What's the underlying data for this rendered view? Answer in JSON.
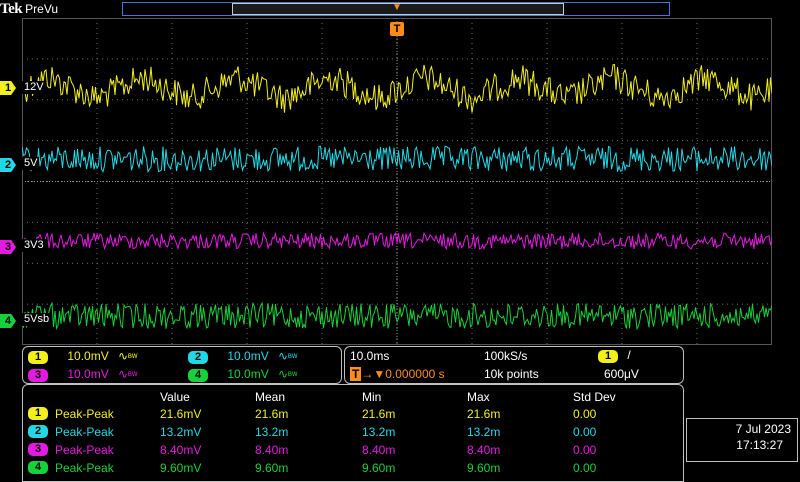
{
  "brand": {
    "logo": "Tek",
    "mode": "PreVu"
  },
  "trigger": {
    "marker": "T",
    "position_marker": "T"
  },
  "colors": {
    "ch1": "#f2ef1c",
    "ch2": "#22d8e6",
    "ch3": "#e31be0",
    "ch4": "#17d13a",
    "grid": "#6e6e6e",
    "trigger": "#ff8c1a",
    "topbar": "#3a7ad8"
  },
  "channels": [
    {
      "num": "1",
      "label": "12V"
    },
    {
      "num": "2",
      "label": "5V"
    },
    {
      "num": "3",
      "label": "3V3"
    },
    {
      "num": "4",
      "label": "5Vsb"
    }
  ],
  "vertical": [
    {
      "num": "1",
      "scale": "10.0mV",
      "bw": "ᴮᵂ"
    },
    {
      "num": "2",
      "scale": "10.0mV",
      "bw": "ᴮᵂ"
    },
    {
      "num": "3",
      "scale": "10.0mV",
      "bw": "ᴮᵂ"
    },
    {
      "num": "4",
      "scale": "10.0mV",
      "bw": "ᴮᵂ"
    }
  ],
  "horizontal": {
    "timebase": "10.0ms",
    "sample_rate": "100kS/s",
    "trigger_position": "0.000000 s",
    "record_length": "10k points",
    "trigger_source": "1",
    "trigger_slope": "/",
    "trigger_level": "600μV"
  },
  "measurements": {
    "headers": [
      "Value",
      "Mean",
      "Min",
      "Max",
      "Std Dev"
    ],
    "rows": [
      {
        "num": "1",
        "type": "Peak-Peak",
        "value": "21.6mV",
        "mean": "21.6m",
        "min": "21.6m",
        "max": "21.6m",
        "std": "0.00"
      },
      {
        "num": "2",
        "type": "Peak-Peak",
        "value": "13.2mV",
        "mean": "13.2m",
        "min": "13.2m",
        "max": "13.2m",
        "std": "0.00"
      },
      {
        "num": "3",
        "type": "Peak-Peak",
        "value": "8.40mV",
        "mean": "8.40m",
        "min": "8.40m",
        "max": "8.40m",
        "std": "0.00"
      },
      {
        "num": "4",
        "type": "Peak-Peak",
        "value": "9.60mV",
        "mean": "9.60m",
        "min": "9.60m",
        "max": "9.60m",
        "std": "0.00"
      }
    ]
  },
  "datetime": {
    "date": "7 Jul  2023",
    "time": "17:13:27"
  }
}
